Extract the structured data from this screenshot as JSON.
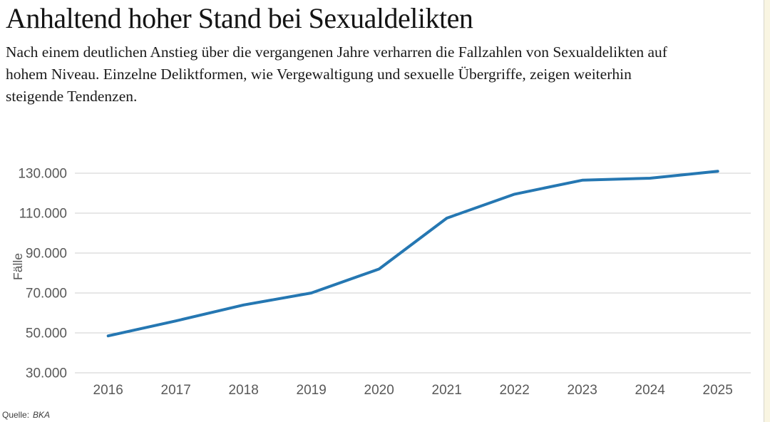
{
  "page": {
    "title": "Anhaltend hoher Stand bei Sexualdelikten",
    "subtitle_lines": [
      "Nach einem deutlichen Anstieg über die vergangenen Jahre verharren die Fallzahlen von Sexualdelikten auf",
      "hohem Niveau. Einzelne Deliktformen, wie Vergewaltigung und sexuelle Übergriffe, zeigen weiterhin",
      "steigende Tendenzen."
    ],
    "source_label": "Quelle:",
    "source_value": "BKA"
  },
  "chart_data": {
    "type": "line",
    "title": "Anhaltend hoher Stand bei Sexualdelikten",
    "categories": [
      "2016",
      "2017",
      "2018",
      "2019",
      "2020",
      "2021",
      "2022",
      "2023",
      "2024",
      "2025"
    ],
    "series": [
      {
        "name": "Fälle",
        "values": [
          48500,
          56000,
          64000,
          70000,
          82000,
          107500,
          119500,
          126500,
          127500,
          131000
        ]
      }
    ],
    "xlabel": "",
    "ylabel": "Fälle",
    "ylim": [
      30000,
      135000
    ],
    "yticks": [
      30000,
      50000,
      70000,
      90000,
      110000,
      130000
    ],
    "ytick_labels": [
      "30.000",
      "50.000",
      "70.000",
      "90.000",
      "110.000",
      "130.000"
    ],
    "grid": true,
    "legend": "none",
    "line_color": "#2577b2",
    "grid_color": "#cfcfcf",
    "tick_label_color": "#595959"
  }
}
